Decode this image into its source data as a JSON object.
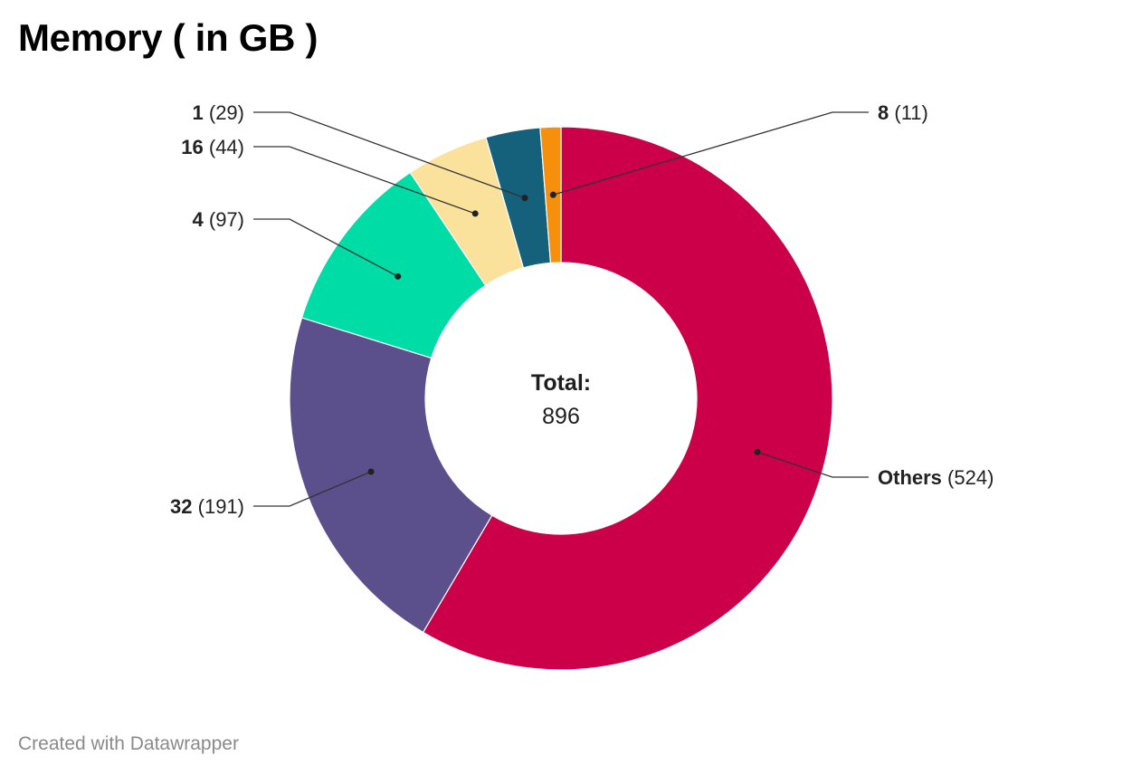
{
  "chart_data": {
    "type": "pie",
    "variant": "donut",
    "title": "Memory ( in GB )",
    "center_label": {
      "title": "Total:",
      "value": "896"
    },
    "slices": [
      {
        "label": "Others",
        "value_text": "(524)",
        "value": 524,
        "color": "#cc0049"
      },
      {
        "label": "32",
        "value_text": "(191)",
        "value": 191,
        "color": "#5c508c"
      },
      {
        "label": "4",
        "value_text": "(97)",
        "value": 97,
        "color": "#00dca6"
      },
      {
        "label": "16",
        "value_text": "(44)",
        "value": 44,
        "color": "#fae29c"
      },
      {
        "label": "1",
        "value_text": "(29)",
        "value": 29,
        "color": "#15607a"
      },
      {
        "label": "8",
        "value_text": "(11)",
        "value": 11,
        "color": "#f68f0b"
      }
    ]
  },
  "footer": {
    "credit": "Created with Datawrapper"
  }
}
